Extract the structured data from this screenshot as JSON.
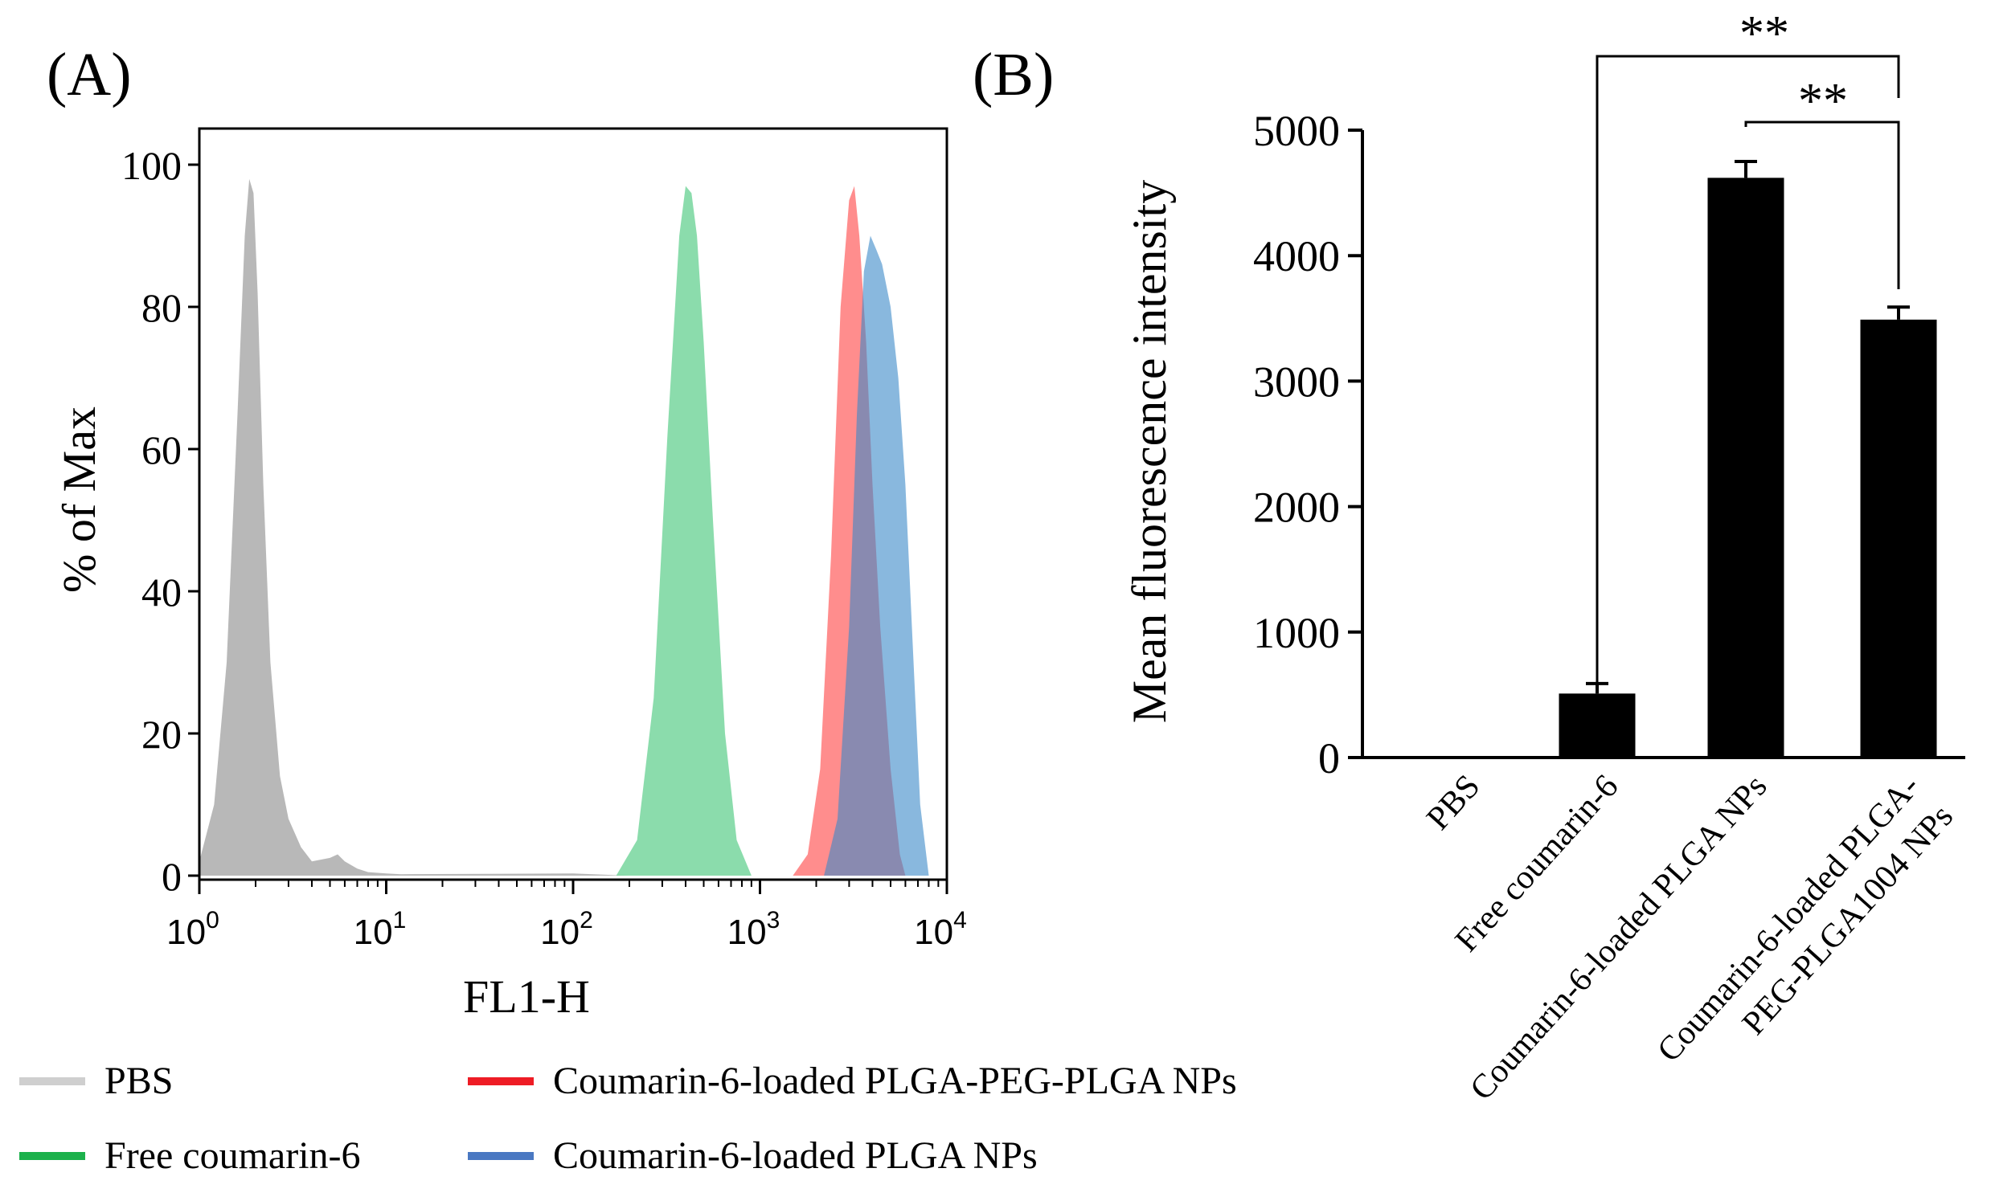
{
  "chart_data": [
    {
      "panel_label": "(A)",
      "type": "area",
      "title": "",
      "xlabel": "FL1-H",
      "ylabel": "% of Max",
      "xscale": "log",
      "xlim": [
        1,
        10000
      ],
      "ylim": [
        0,
        105
      ],
      "xticks": [
        {
          "value": 1,
          "base": "10",
          "exp": "0"
        },
        {
          "value": 10,
          "base": "10",
          "exp": "1"
        },
        {
          "value": 100,
          "base": "10",
          "exp": "2"
        },
        {
          "value": 1000,
          "base": "10",
          "exp": "3"
        },
        {
          "value": 10000,
          "base": "10",
          "exp": "4"
        }
      ],
      "yticks": [
        0,
        20,
        40,
        60,
        80,
        100
      ],
      "series": [
        {
          "name": "PBS",
          "color": "#b4b4b4",
          "opacity": 0.95,
          "x": [
            1.0,
            1.2,
            1.4,
            1.6,
            1.75,
            1.85,
            1.95,
            2.05,
            2.2,
            2.4,
            2.7,
            3.0,
            3.5,
            4.0,
            5.0,
            5.5,
            6.0,
            7.0,
            8.0,
            10,
            12,
            100,
            200
          ],
          "y": [
            2,
            10,
            30,
            65,
            90,
            98,
            96,
            82,
            55,
            30,
            14,
            8,
            4,
            2,
            2.5,
            3,
            2,
            1,
            0.5,
            0.3,
            0.2,
            0.3,
            0
          ]
        },
        {
          "name": "Free coumarin-6",
          "color": "#4dc97f",
          "opacity": 0.65,
          "x": [
            170,
            220,
            270,
            320,
            370,
            400,
            430,
            460,
            500,
            560,
            650,
            750,
            900
          ],
          "y": [
            0,
            5,
            25,
            62,
            90,
            97,
            96,
            90,
            75,
            50,
            20,
            5,
            0
          ]
        },
        {
          "name": "Coumarin-6-loaded PLGA-PEG-PLGA NPs",
          "color": "#ff3030",
          "opacity": 0.55,
          "x": [
            1500,
            1800,
            2100,
            2400,
            2700,
            3000,
            3200,
            3400,
            3700,
            4000,
            4400,
            5000,
            5600,
            6000
          ],
          "y": [
            0,
            3,
            15,
            45,
            80,
            95,
            97,
            90,
            75,
            55,
            35,
            15,
            3,
            0
          ]
        },
        {
          "name": "Coumarin-6-loaded PLGA NPs",
          "color": "#3a88c8",
          "opacity": 0.6,
          "x": [
            2200,
            2600,
            3000,
            3300,
            3600,
            3900,
            4200,
            4500,
            5000,
            5500,
            6000,
            6500,
            7200,
            8000
          ],
          "y": [
            0,
            8,
            35,
            65,
            85,
            90,
            88,
            86,
            80,
            70,
            55,
            35,
            10,
            0
          ]
        }
      ]
    },
    {
      "panel_label": "(B)",
      "type": "bar",
      "title": "",
      "xlabel": "",
      "ylabel": "Mean fluorescence intensity",
      "ylim": [
        0,
        5000
      ],
      "yticks": [
        0,
        1000,
        2000,
        3000,
        4000,
        5000
      ],
      "categories": [
        {
          "lines": [
            "PBS"
          ]
        },
        {
          "lines": [
            "Free coumarin-6"
          ]
        },
        {
          "lines": [
            "Coumarin-6-loaded PLGA NPs"
          ]
        },
        {
          "lines": [
            "Coumarin-6-loaded PLGA-",
            "PEG-PLGA1004 NPs"
          ]
        }
      ],
      "values": [
        0,
        510,
        4620,
        3490
      ],
      "errors": [
        0,
        80,
        130,
        100
      ],
      "bar_color": "#000000",
      "significance": [
        {
          "from": 1,
          "to": 3,
          "label": "**"
        },
        {
          "from": 2,
          "to": 3,
          "label": "**"
        }
      ]
    }
  ],
  "legend": {
    "items": [
      {
        "label": "PBS",
        "color": "#cfcfcf"
      },
      {
        "label": "Coumarin-6-loaded PLGA-PEG-PLGA NPs",
        "color": "#ee1c25"
      },
      {
        "label": "Free coumarin-6",
        "color": "#1cb14c"
      },
      {
        "label": "Coumarin-6-loaded PLGA NPs",
        "color": "#4a78c2"
      }
    ]
  }
}
